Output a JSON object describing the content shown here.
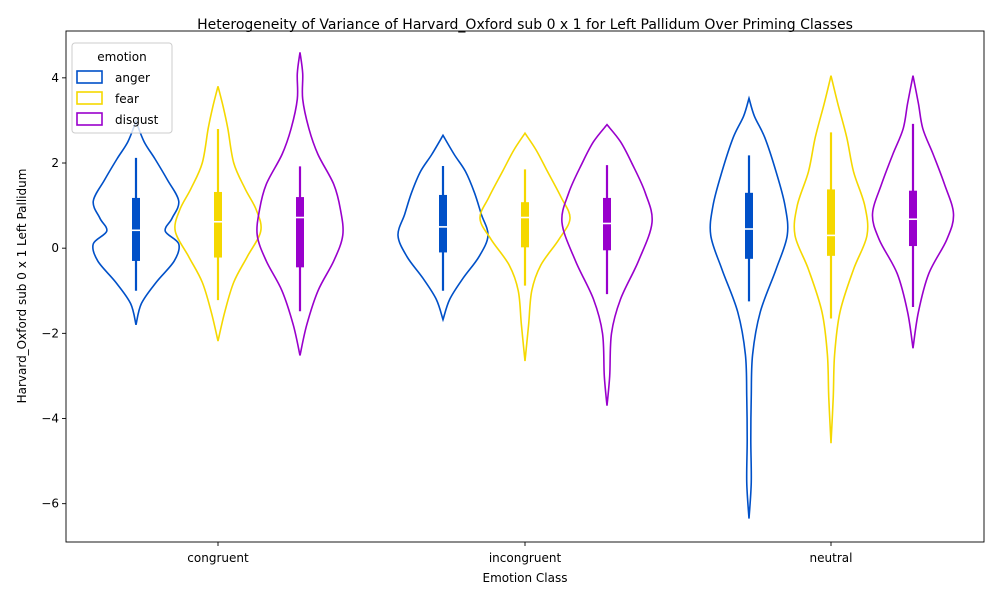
{
  "chart_data": {
    "type": "violin",
    "title": "Heterogeneity of Variance of Harvard_Oxford sub 0 x 1 for Left Pallidum Over Priming Classes",
    "xlabel": "Emotion Class",
    "ylabel": "Harvard_Oxford sub 0 x 1 Left Pallidum",
    "categories": [
      "congruent",
      "incongruent",
      "neutral"
    ],
    "ylim": [
      -6.9,
      5.1
    ],
    "yticks": [
      -6,
      -4,
      -2,
      0,
      2,
      4
    ],
    "ytick_labels": [
      "−6",
      "−4",
      "−2",
      "0",
      "2",
      "4"
    ],
    "grid": false,
    "legend": {
      "title": "emotion",
      "placement": "top-left",
      "entries": [
        "anger",
        "fear",
        "disgust"
      ]
    },
    "colors": {
      "anger": "#0050c8",
      "fear": "#f5d800",
      "disgust": "#9900cc"
    },
    "series": [
      {
        "name": "anger",
        "stats": [
          {
            "category": "congruent",
            "min": -1.8,
            "max": 2.98,
            "q1": -0.3,
            "median": 0.42,
            "q3": 1.18,
            "whisker_low": -1.0,
            "whisker_high": 2.12,
            "density": [
              [
                -1.8,
                0.0
              ],
              [
                -1.3,
                0.12
              ],
              [
                -0.8,
                0.45
              ],
              [
                -0.3,
                0.85
              ],
              [
                0.1,
                0.95
              ],
              [
                0.4,
                0.65
              ],
              [
                0.7,
                0.8
              ],
              [
                1.1,
                0.95
              ],
              [
                1.6,
                0.7
              ],
              [
                2.1,
                0.42
              ],
              [
                2.5,
                0.18
              ],
              [
                2.98,
                0.0
              ]
            ]
          },
          {
            "category": "incongruent",
            "min": -1.68,
            "max": 2.65,
            "q1": -0.1,
            "median": 0.5,
            "q3": 1.25,
            "whisker_low": -1.0,
            "whisker_high": 1.93,
            "density": [
              [
                -1.68,
                0.0
              ],
              [
                -1.2,
                0.15
              ],
              [
                -0.7,
                0.45
              ],
              [
                -0.2,
                0.8
              ],
              [
                0.3,
                1.0
              ],
              [
                0.8,
                0.85
              ],
              [
                1.3,
                0.7
              ],
              [
                1.8,
                0.5
              ],
              [
                2.2,
                0.25
              ],
              [
                2.65,
                0.0
              ]
            ]
          },
          {
            "category": "neutral",
            "min": -6.35,
            "max": 3.52,
            "q1": -0.25,
            "median": 0.45,
            "q3": 1.3,
            "whisker_low": -1.25,
            "whisker_high": 2.18,
            "density": [
              [
                -6.35,
                0.0
              ],
              [
                -5.5,
                0.05
              ],
              [
                -4.5,
                0.04
              ],
              [
                -3.5,
                0.05
              ],
              [
                -2.5,
                0.08
              ],
              [
                -1.5,
                0.25
              ],
              [
                -0.5,
                0.6
              ],
              [
                0.3,
                0.85
              ],
              [
                1.0,
                0.8
              ],
              [
                1.8,
                0.6
              ],
              [
                2.6,
                0.35
              ],
              [
                3.1,
                0.12
              ],
              [
                3.52,
                0.0
              ]
            ]
          }
        ]
      },
      {
        "name": "fear",
        "stats": [
          {
            "category": "congruent",
            "min": -2.18,
            "max": 3.8,
            "q1": -0.22,
            "median": 0.62,
            "q3": 1.32,
            "whisker_low": -1.22,
            "whisker_high": 2.8,
            "density": [
              [
                -2.18,
                0.0
              ],
              [
                -1.5,
                0.15
              ],
              [
                -0.8,
                0.35
              ],
              [
                -0.2,
                0.65
              ],
              [
                0.4,
                0.95
              ],
              [
                0.9,
                0.85
              ],
              [
                1.4,
                0.6
              ],
              [
                2.0,
                0.35
              ],
              [
                2.8,
                0.22
              ],
              [
                3.3,
                0.12
              ],
              [
                3.8,
                0.0
              ]
            ]
          },
          {
            "category": "incongruent",
            "min": -2.65,
            "max": 2.7,
            "q1": 0.02,
            "median": 0.72,
            "q3": 1.08,
            "whisker_low": -0.88,
            "whisker_high": 1.85,
            "density": [
              [
                -2.65,
                0.0
              ],
              [
                -1.8,
                0.08
              ],
              [
                -1.0,
                0.15
              ],
              [
                -0.4,
                0.35
              ],
              [
                0.2,
                0.75
              ],
              [
                0.7,
                1.0
              ],
              [
                1.2,
                0.8
              ],
              [
                1.8,
                0.5
              ],
              [
                2.3,
                0.25
              ],
              [
                2.7,
                0.0
              ]
            ]
          },
          {
            "category": "neutral",
            "min": -4.58,
            "max": 4.05,
            "q1": -0.18,
            "median": 0.3,
            "q3": 1.38,
            "whisker_low": -1.65,
            "whisker_high": 2.72,
            "density": [
              [
                -4.58,
                0.0
              ],
              [
                -3.5,
                0.05
              ],
              [
                -2.5,
                0.08
              ],
              [
                -1.5,
                0.2
              ],
              [
                -0.5,
                0.5
              ],
              [
                0.3,
                0.8
              ],
              [
                1.0,
                0.75
              ],
              [
                1.8,
                0.5
              ],
              [
                2.6,
                0.35
              ],
              [
                3.4,
                0.15
              ],
              [
                4.05,
                0.0
              ]
            ]
          }
        ]
      },
      {
        "name": "disgust",
        "stats": [
          {
            "category": "congruent",
            "min": -2.52,
            "max": 4.6,
            "q1": -0.45,
            "median": 0.72,
            "q3": 1.2,
            "whisker_low": -1.48,
            "whisker_high": 1.92,
            "density": [
              [
                -2.52,
                0.0
              ],
              [
                -1.8,
                0.15
              ],
              [
                -1.0,
                0.4
              ],
              [
                -0.3,
                0.75
              ],
              [
                0.3,
                0.95
              ],
              [
                0.9,
                0.9
              ],
              [
                1.5,
                0.75
              ],
              [
                2.2,
                0.4
              ],
              [
                2.8,
                0.2
              ],
              [
                3.5,
                0.06
              ],
              [
                4.1,
                0.06
              ],
              [
                4.6,
                0.0
              ]
            ]
          },
          {
            "category": "incongruent",
            "min": -3.7,
            "max": 2.9,
            "q1": -0.05,
            "median": 0.58,
            "q3": 1.18,
            "whisker_low": -1.08,
            "whisker_high": 1.95,
            "density": [
              [
                -3.7,
                0.0
              ],
              [
                -3.0,
                0.06
              ],
              [
                -2.0,
                0.1
              ],
              [
                -1.2,
                0.3
              ],
              [
                -0.3,
                0.7
              ],
              [
                0.6,
                1.0
              ],
              [
                1.3,
                0.85
              ],
              [
                2.0,
                0.55
              ],
              [
                2.5,
                0.3
              ],
              [
                2.9,
                0.0
              ]
            ]
          },
          {
            "category": "neutral",
            "min": -2.35,
            "max": 4.05,
            "q1": 0.05,
            "median": 0.68,
            "q3": 1.35,
            "whisker_low": -1.38,
            "whisker_high": 2.92,
            "density": [
              [
                -2.35,
                0.0
              ],
              [
                -1.5,
                0.12
              ],
              [
                -0.6,
                0.35
              ],
              [
                0.2,
                0.75
              ],
              [
                0.8,
                0.9
              ],
              [
                1.5,
                0.7
              ],
              [
                2.2,
                0.45
              ],
              [
                2.8,
                0.22
              ],
              [
                3.4,
                0.12
              ],
              [
                4.05,
                0.0
              ]
            ]
          }
        ]
      }
    ]
  }
}
